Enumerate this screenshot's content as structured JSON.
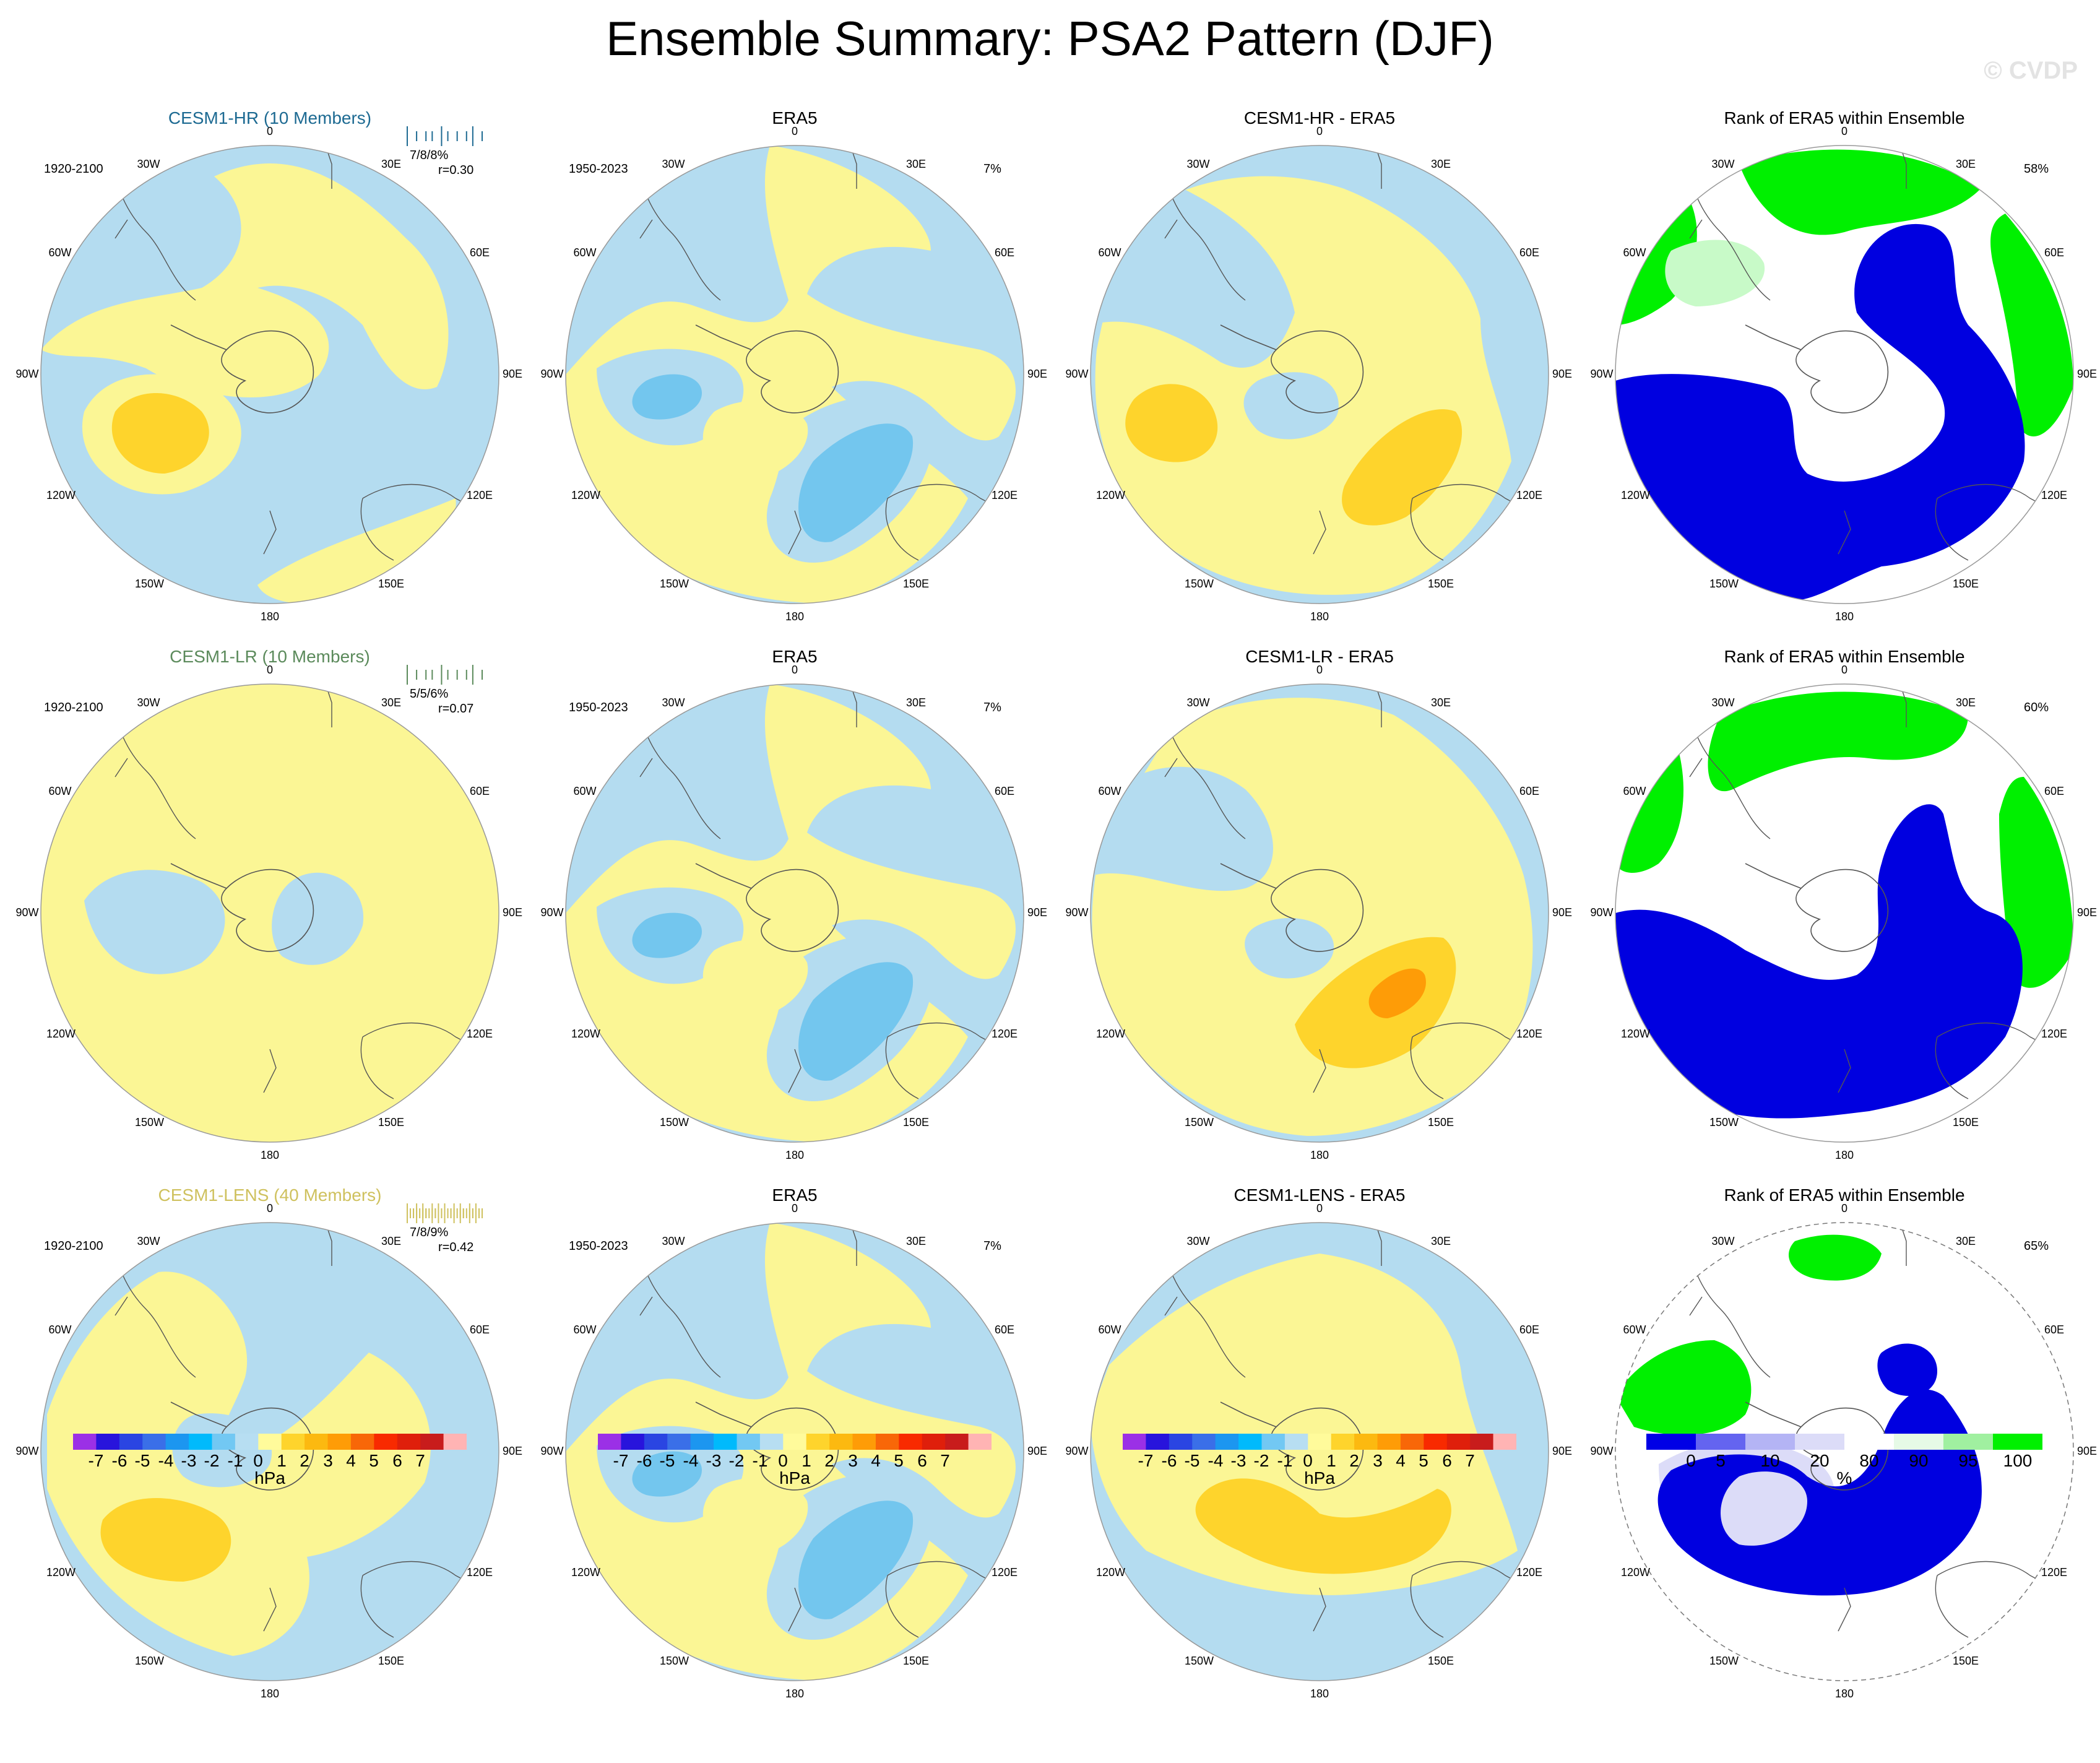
{
  "figure_title": "Ensemble Summary: PSA2 Pattern (DJF)",
  "watermark": "© CVDP",
  "longitude_labels": [
    "0",
    "30E",
    "60E",
    "90E",
    "120E",
    "150E",
    "180",
    "150W",
    "120W",
    "90W",
    "60W",
    "30W"
  ],
  "colors": {
    "neg_light": "#b4dcf0",
    "neg_mid": "#73c6ee",
    "pos_light": "#fbf695",
    "pos_mid": "#fed42c",
    "pos_deep": "#fcb910",
    "pos_strong": "#fe9c07",
    "rank_low": "#0000e0",
    "rank_midlow": "#dcdcf8",
    "rank_mid": "#ffffff",
    "rank_high": "#c8fac8",
    "rank_top": "#00f000"
  },
  "rows": [
    {
      "model": {
        "title": "CESM1-HR (10 Members)",
        "title_color": "#1d6a92",
        "years": "1920-2100",
        "stats": "7/8/8%",
        "r": "r=0.30"
      },
      "obs": {
        "title": "ERA5",
        "years": "1950-2023",
        "pct": "7%"
      },
      "diff": {
        "title": "CESM1-HR - ERA5"
      },
      "rank": {
        "title": "Rank of ERA5 within Ensemble",
        "pct": "58%"
      }
    },
    {
      "model": {
        "title": "CESM1-LR (10 Members)",
        "title_color": "#5b8a5b",
        "years": "1920-2100",
        "stats": "5/5/6%",
        "r": "r=0.07"
      },
      "obs": {
        "title": "ERA5",
        "years": "1950-2023",
        "pct": "7%"
      },
      "diff": {
        "title": "CESM1-LR - ERA5"
      },
      "rank": {
        "title": "Rank of ERA5 within Ensemble",
        "pct": "60%"
      }
    },
    {
      "model": {
        "title": "CESM1-LENS (40 Members)",
        "title_color": "#cfc15e",
        "years": "1920-2100",
        "stats": "7/8/9%",
        "r": "r=0.42"
      },
      "obs": {
        "title": "ERA5",
        "years": "1950-2023",
        "pct": "7%"
      },
      "diff": {
        "title": "CESM1-LENS - ERA5"
      },
      "rank": {
        "title": "Rank of ERA5 within Ensemble",
        "pct": "65%"
      }
    }
  ],
  "colorbars": {
    "hpa": {
      "labels": [
        "-7",
        "-6",
        "-5",
        "-4",
        "-3",
        "-2",
        "-1",
        "0",
        "1",
        "2",
        "3",
        "4",
        "5",
        "6",
        "7"
      ],
      "colors": [
        "#9b30e6",
        "#2814dc",
        "#2a45e2",
        "#3a6fe8",
        "#1c96f0",
        "#00bafc",
        "#72c8f3",
        "#b7def2",
        "#fffb9b",
        "#fed42c",
        "#fcb910",
        "#fe9c07",
        "#f86708",
        "#f82a00",
        "#df1f0b",
        "#c81c1c",
        "#ffb4b4"
      ],
      "units": "hPa"
    },
    "pct": {
      "labels": [
        "0",
        "5",
        "10",
        "20",
        "80",
        "90",
        "95",
        "100"
      ],
      "colors": [
        "#0000e6",
        "#6464f0",
        "#b4b4f5",
        "#dcdcf8",
        "#ffffff",
        "#e6fae6",
        "#a0f0a0",
        "#00f000"
      ],
      "units": "%"
    }
  }
}
